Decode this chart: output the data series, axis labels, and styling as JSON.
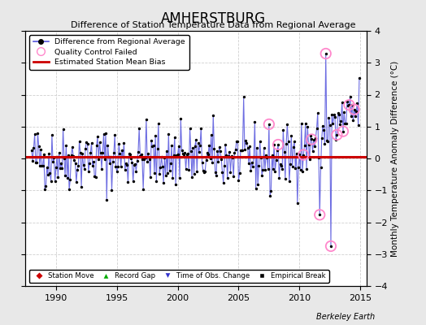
{
  "title": "AMHERSTBURG",
  "subtitle": "Difference of Station Temperature Data from Regional Average",
  "ylabel": "Monthly Temperature Anomaly Difference (°C)",
  "xlim": [
    1987.5,
    2015.5
  ],
  "ylim": [
    -4,
    4
  ],
  "bias": 0.05,
  "background_color": "#e8e8e8",
  "plot_bg": "#ffffff",
  "grid_color": "#d0d0d0",
  "grid_style": "--",
  "line_color": "#5555dd",
  "dot_color": "#000000",
  "bias_color": "#cc0000",
  "qc_color": "#ff88cc",
  "seed": 42,
  "xlabel_ticks": [
    1990,
    1995,
    2000,
    2005,
    2010,
    2015
  ],
  "yticks": [
    -4,
    -3,
    -2,
    -1,
    0,
    1,
    2,
    3,
    4
  ],
  "watermark": "Berkeley Earth",
  "start_year": 1988.0,
  "end_year": 2014.917
}
